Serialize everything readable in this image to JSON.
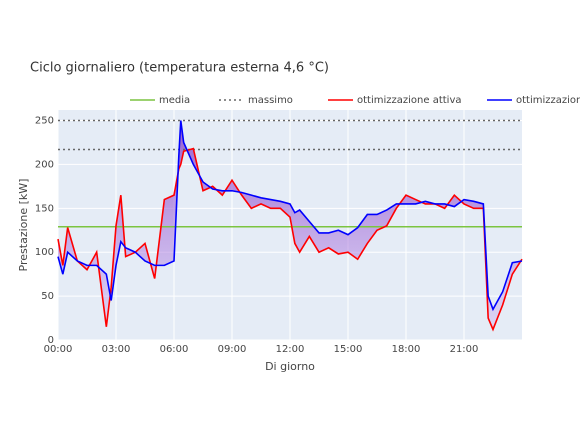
{
  "chart_data": {
    "type": "line",
    "title": "Ciclo giornaliero (temperatura esterna 4,6 °C)",
    "x_label": "Di giorno",
    "y_label": "Prestazione [kW]",
    "x": [
      0,
      0.25,
      0.5,
      1,
      1.5,
      2,
      2.5,
      2.75,
      3,
      3.25,
      3.5,
      4,
      4.5,
      5,
      5.5,
      6,
      6.25,
      6.35,
      6.5,
      7,
      7.5,
      8,
      8.5,
      9,
      9.5,
      10,
      10.5,
      11,
      11.5,
      12,
      12.25,
      12.5,
      13,
      13.5,
      14,
      14.5,
      15,
      15.5,
      16,
      16.5,
      17,
      17.5,
      18,
      18.5,
      19,
      19.5,
      20,
      20.5,
      21,
      21.5,
      22,
      22.25,
      22.5,
      23,
      23.5,
      24
    ],
    "series": [
      {
        "name": "ottimizzazione attiva",
        "color": "#ff0000",
        "values": [
          115,
          85,
          128,
          90,
          80,
          100,
          15,
          60,
          130,
          165,
          95,
          100,
          110,
          70,
          160,
          165,
          195,
          200,
          215,
          218,
          170,
          175,
          165,
          182,
          165,
          150,
          155,
          150,
          150,
          140,
          110,
          100,
          118,
          100,
          105,
          98,
          100,
          92,
          110,
          125,
          130,
          150,
          165,
          160,
          155,
          155,
          150,
          165,
          155,
          150,
          150,
          25,
          12,
          40,
          75,
          92
        ]
      },
      {
        "name": "ottimizzazione inattiva",
        "color": "#0000ff",
        "values": [
          95,
          75,
          100,
          90,
          85,
          85,
          75,
          45,
          85,
          112,
          105,
          100,
          90,
          85,
          85,
          90,
          210,
          250,
          225,
          200,
          180,
          172,
          170,
          170,
          168,
          165,
          162,
          160,
          158,
          155,
          145,
          148,
          135,
          122,
          122,
          125,
          120,
          128,
          143,
          143,
          148,
          155,
          155,
          155,
          158,
          155,
          155,
          152,
          160,
          158,
          155,
          50,
          35,
          55,
          88,
          90
        ]
      }
    ],
    "reference_lines": [
      {
        "name": "media",
        "color": "#7cc440",
        "dash": "solid",
        "values": [
          129
        ]
      },
      {
        "name": "massimo",
        "color": "#666666",
        "dash": "dot",
        "values": [
          217,
          250
        ]
      }
    ],
    "fill_between": true,
    "xlim": [
      0,
      24
    ],
    "ylim": [
      0,
      262
    ],
    "xticks": [
      {
        "value": 0,
        "label": "00:00"
      },
      {
        "value": 3,
        "label": "03:00"
      },
      {
        "value": 6,
        "label": "06:00"
      },
      {
        "value": 9,
        "label": "09:00"
      },
      {
        "value": 12,
        "label": "12:00"
      },
      {
        "value": 15,
        "label": "15:00"
      },
      {
        "value": 18,
        "label": "18:00"
      },
      {
        "value": 21,
        "label": "21:00"
      }
    ],
    "yticks": [
      0,
      50,
      100,
      150,
      200,
      250
    ],
    "grid": true
  }
}
